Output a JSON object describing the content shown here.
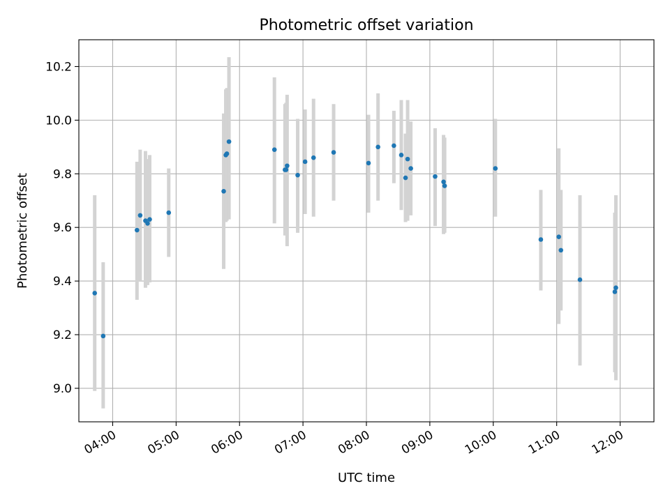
{
  "chart_data": {
    "type": "scatter",
    "title": "Photometric offset variation",
    "xlabel": "UTC time",
    "ylabel": "Photometric offset",
    "x_axis_type": "time",
    "xlim": [
      "03:28",
      "12:32"
    ],
    "ylim": [
      8.875,
      10.3
    ],
    "x_ticks": [
      "04:00",
      "05:00",
      "06:00",
      "07:00",
      "08:00",
      "09:00",
      "10:00",
      "11:00",
      "12:00"
    ],
    "y_ticks": [
      "9.0",
      "9.2",
      "9.4",
      "9.6",
      "9.8",
      "10.0",
      "10.2"
    ],
    "grid": true,
    "colors": {
      "point": "#1f77b4",
      "errorbar": "#d3d3d3",
      "grid": "#b0b0b0"
    },
    "points": [
      {
        "x": "03:43",
        "y": 9.355,
        "lo": 8.99,
        "hi": 9.72
      },
      {
        "x": "03:51",
        "y": 9.195,
        "lo": 8.925,
        "hi": 9.47
      },
      {
        "x": "04:23",
        "y": 9.59,
        "lo": 9.33,
        "hi": 9.845
      },
      {
        "x": "04:26",
        "y": 9.645,
        "lo": 9.4,
        "hi": 9.89
      },
      {
        "x": "04:31",
        "y": 9.625,
        "lo": 9.375,
        "hi": 9.885
      },
      {
        "x": "04:33",
        "y": 9.615,
        "lo": 9.385,
        "hi": 9.855
      },
      {
        "x": "04:35",
        "y": 9.63,
        "lo": 9.395,
        "hi": 9.87
      },
      {
        "x": "04:53",
        "y": 9.655,
        "lo": 9.49,
        "hi": 9.82
      },
      {
        "x": "05:45",
        "y": 9.735,
        "lo": 9.445,
        "hi": 10.025
      },
      {
        "x": "05:47",
        "y": 9.87,
        "lo": 9.62,
        "hi": 10.115
      },
      {
        "x": "05:48",
        "y": 9.875,
        "lo": 9.625,
        "hi": 10.12
      },
      {
        "x": "05:50",
        "y": 9.92,
        "lo": 9.63,
        "hi": 10.235
      },
      {
        "x": "06:33",
        "y": 9.89,
        "lo": 9.615,
        "hi": 10.16
      },
      {
        "x": "06:43",
        "y": 9.815,
        "lo": 9.57,
        "hi": 10.06
      },
      {
        "x": "06:44",
        "y": 9.815,
        "lo": 9.575,
        "hi": 10.065
      },
      {
        "x": "06:45",
        "y": 9.83,
        "lo": 9.53,
        "hi": 10.095
      },
      {
        "x": "06:55",
        "y": 9.795,
        "lo": 9.58,
        "hi": 10.005
      },
      {
        "x": "07:02",
        "y": 9.845,
        "lo": 9.65,
        "hi": 10.04
      },
      {
        "x": "07:10",
        "y": 9.86,
        "lo": 9.64,
        "hi": 10.08
      },
      {
        "x": "07:29",
        "y": 9.88,
        "lo": 9.7,
        "hi": 10.06
      },
      {
        "x": "08:02",
        "y": 9.84,
        "lo": 9.655,
        "hi": 10.02
      },
      {
        "x": "08:11",
        "y": 9.9,
        "lo": 9.7,
        "hi": 10.1
      },
      {
        "x": "08:26",
        "y": 9.905,
        "lo": 9.765,
        "hi": 10.035
      },
      {
        "x": "08:33",
        "y": 9.87,
        "lo": 9.665,
        "hi": 10.075
      },
      {
        "x": "08:37",
        "y": 9.785,
        "lo": 9.62,
        "hi": 9.95
      },
      {
        "x": "08:39",
        "y": 9.855,
        "lo": 9.625,
        "hi": 10.075
      },
      {
        "x": "08:42",
        "y": 9.82,
        "lo": 9.645,
        "hi": 9.995
      },
      {
        "x": "09:05",
        "y": 9.79,
        "lo": 9.605,
        "hi": 9.97
      },
      {
        "x": "09:13",
        "y": 9.77,
        "lo": 9.575,
        "hi": 9.945
      },
      {
        "x": "09:14",
        "y": 9.755,
        "lo": 9.58,
        "hi": 9.935
      },
      {
        "x": "10:02",
        "y": 9.82,
        "lo": 9.64,
        "hi": 10.005
      },
      {
        "x": "10:45",
        "y": 9.555,
        "lo": 9.365,
        "hi": 9.74
      },
      {
        "x": "11:02",
        "y": 9.565,
        "lo": 9.24,
        "hi": 9.895
      },
      {
        "x": "11:04",
        "y": 9.515,
        "lo": 9.29,
        "hi": 9.74
      },
      {
        "x": "11:22",
        "y": 9.405,
        "lo": 9.085,
        "hi": 9.72
      },
      {
        "x": "11:55",
        "y": 9.36,
        "lo": 9.06,
        "hi": 9.655
      },
      {
        "x": "11:56",
        "y": 9.375,
        "lo": 9.03,
        "hi": 9.72
      }
    ]
  }
}
